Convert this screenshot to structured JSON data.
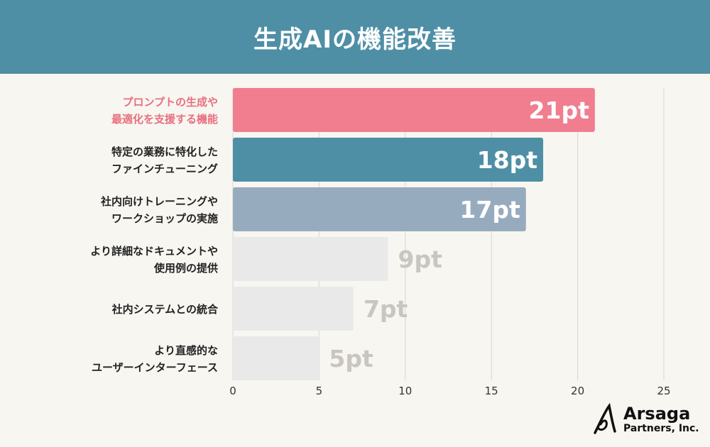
{
  "header": {
    "title": "生成AIの機能改善"
  },
  "colors": {
    "header_bg": "#4f8fa6",
    "highlight_label": "#e8707f",
    "bar_colors": [
      "#f07e8f",
      "#4f8fa6",
      "#97abbe",
      "#e9e9e9",
      "#e9e9e9",
      "#e9e9e9"
    ],
    "value_colors": [
      "#ffffff",
      "#ffffff",
      "#ffffff",
      "#c9c6c0",
      "#c9c6c0",
      "#c9c6c0"
    ],
    "label_colors": [
      "#e8707f",
      "#222222",
      "#222222",
      "#222222",
      "#222222",
      "#222222"
    ]
  },
  "chart_data": {
    "type": "bar",
    "orientation": "horizontal",
    "title": "生成AIの機能改善",
    "categories": [
      [
        "プロンプトの生成や",
        "最適化を支援する機能"
      ],
      [
        "特定の業務に特化した",
        "ファインチューニング"
      ],
      [
        "社内向けトレーニングや",
        "ワークショップの実施"
      ],
      [
        "より詳細なドキュメントや",
        "使用例の提供"
      ],
      [
        "社内システムとの統合"
      ],
      [
        "より直感的な",
        "ユーザーインターフェース"
      ]
    ],
    "values": [
      21,
      18,
      17,
      9,
      7,
      5
    ],
    "value_labels": [
      "21pt",
      "18pt",
      "17pt",
      "9pt",
      "7pt",
      "5pt"
    ],
    "xlim": [
      0,
      25
    ],
    "xticks": [
      0,
      5,
      10,
      15,
      20,
      25
    ],
    "grid": true,
    "xlabel": "",
    "ylabel": ""
  },
  "logo": {
    "name": "Arsaga",
    "sub": "Partners, Inc."
  }
}
